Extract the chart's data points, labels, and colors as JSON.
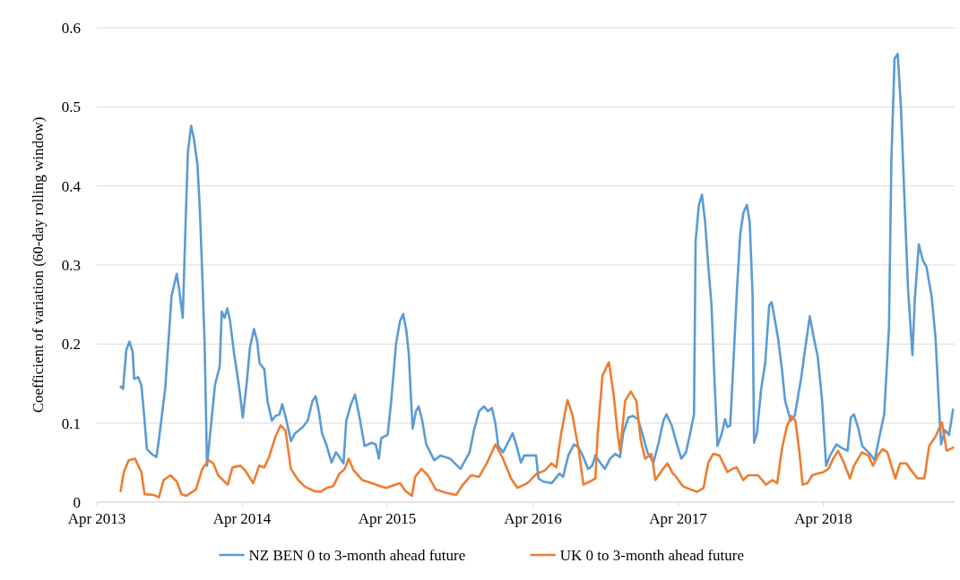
{
  "chart_data": {
    "type": "line",
    "ylabel": "Coefficient of variation (60-day rolling window)",
    "xlim": [
      "2013-04-01",
      "2019-02-25"
    ],
    "xticks": [
      {
        "value": "2013-04-01",
        "label": "Apr 2013"
      },
      {
        "value": "2014-04-01",
        "label": "Apr 2014"
      },
      {
        "value": "2015-04-01",
        "label": "Apr 2015"
      },
      {
        "value": "2016-04-01",
        "label": "Apr 2016"
      },
      {
        "value": "2017-04-01",
        "label": "Apr 2017"
      },
      {
        "value": "2018-04-01",
        "label": "Apr 2018"
      }
    ],
    "ylim": [
      0,
      0.6
    ],
    "yticks": [
      0,
      0.1,
      0.2,
      0.3,
      0.4,
      0.5,
      0.6
    ],
    "grid": "y",
    "legend": "bottom",
    "line_style": "solid",
    "marker": "none",
    "series": [
      {
        "name": "NZ BEN 0 to 3-month ahead future",
        "color": "#5b9bd5",
        "x": [
          "2013-05-31",
          "2013-06-06",
          "2013-06-14",
          "2013-06-22",
          "2013-06-30",
          "2013-07-04",
          "2013-07-14",
          "2013-07-22",
          "2013-07-28",
          "2013-08-05",
          "2013-08-19",
          "2013-08-29",
          "2013-09-04",
          "2013-09-20",
          "2013-10-06",
          "2013-10-19",
          "2013-10-25",
          "2013-11-03",
          "2013-11-10",
          "2013-11-16",
          "2013-11-24",
          "2013-12-01",
          "2013-12-10",
          "2013-12-16",
          "2013-12-22",
          "2013-12-28",
          "2014-01-03",
          "2014-01-11",
          "2014-01-23",
          "2014-02-04",
          "2014-02-09",
          "2014-02-16",
          "2014-02-23",
          "2014-03-02",
          "2014-03-12",
          "2014-03-24",
          "2014-04-03",
          "2014-04-13",
          "2014-04-21",
          "2014-05-01",
          "2014-05-09",
          "2014-05-15",
          "2014-05-27",
          "2014-06-04",
          "2014-06-15",
          "2014-06-24",
          "2014-07-04",
          "2014-07-11",
          "2014-07-20",
          "2014-08-02",
          "2014-08-12",
          "2014-09-01",
          "2014-09-13",
          "2014-09-25",
          "2014-10-03",
          "2014-10-11",
          "2014-10-19",
          "2014-10-31",
          "2014-11-12",
          "2014-11-23",
          "2014-12-02",
          "2014-12-12",
          "2014-12-19",
          "2014-12-31",
          "2015-01-10",
          "2015-01-20",
          "2015-02-03",
          "2015-02-21",
          "2015-03-03",
          "2015-03-11",
          "2015-03-17",
          "2015-04-02",
          "2015-04-11",
          "2015-04-23",
          "2015-05-03",
          "2015-05-11",
          "2015-05-19",
          "2015-05-25",
          "2015-05-31",
          "2015-06-04",
          "2015-06-12",
          "2015-06-19",
          "2015-06-28",
          "2015-07-08",
          "2015-07-28",
          "2015-08-13",
          "2015-09-06",
          "2015-10-02",
          "2015-10-25",
          "2015-11-05",
          "2015-11-18",
          "2015-11-30",
          "2015-12-10",
          "2015-12-20",
          "2015-12-29",
          "2016-01-05",
          "2016-01-17",
          "2016-01-29",
          "2016-02-10",
          "2016-02-18",
          "2016-03-02",
          "2016-03-10",
          "2016-03-26",
          "2016-04-09",
          "2016-04-15",
          "2016-04-27",
          "2016-05-18",
          "2016-06-07",
          "2016-06-16",
          "2016-06-29",
          "2016-07-13",
          "2016-07-25",
          "2016-08-06",
          "2016-08-18",
          "2016-08-28",
          "2016-09-05",
          "2016-09-17",
          "2016-09-29",
          "2016-10-12",
          "2016-10-25",
          "2016-11-06",
          "2016-11-14",
          "2016-11-27",
          "2016-12-08",
          "2016-12-21",
          "2017-01-01",
          "2017-01-14",
          "2017-01-29",
          "2017-02-11",
          "2017-02-23",
          "2017-03-03",
          "2017-03-16",
          "2017-03-28",
          "2017-04-09",
          "2017-04-21",
          "2017-05-03",
          "2017-05-11",
          "2017-05-15",
          "2017-05-23",
          "2017-05-31",
          "2017-06-08",
          "2017-06-16",
          "2017-06-24",
          "2017-07-02",
          "2017-07-09",
          "2017-07-20",
          "2017-07-28",
          "2017-08-03",
          "2017-08-10",
          "2017-08-18",
          "2017-08-27",
          "2017-09-04",
          "2017-09-12",
          "2017-09-21",
          "2017-09-28",
          "2017-10-05",
          "2017-10-09",
          "2017-10-16",
          "2017-10-27",
          "2017-11-06",
          "2017-11-16",
          "2017-11-22",
          "2017-11-28",
          "2017-12-08",
          "2017-12-18",
          "2017-12-26",
          "2018-01-09",
          "2018-01-19",
          "2018-02-04",
          "2018-02-16",
          "2018-02-26",
          "2018-03-08",
          "2018-03-18",
          "2018-03-29",
          "2018-04-08",
          "2018-04-18",
          "2018-05-04",
          "2018-05-16",
          "2018-06-01",
          "2018-06-09",
          "2018-06-17",
          "2018-06-27",
          "2018-07-08",
          "2018-07-27",
          "2018-08-08",
          "2018-08-20",
          "2018-09-01",
          "2018-09-13",
          "2018-09-19",
          "2018-09-27",
          "2018-10-05",
          "2018-10-13",
          "2018-10-23",
          "2018-10-31",
          "2018-11-11",
          "2018-11-17",
          "2018-11-27",
          "2018-12-07",
          "2018-12-16",
          "2018-12-29",
          "2019-01-08",
          "2019-01-16",
          "2019-01-22",
          "2019-02-01",
          "2019-02-11",
          "2019-02-21"
        ],
        "values": [
          0.146,
          0.143,
          0.192,
          0.203,
          0.19,
          0.156,
          0.158,
          0.148,
          0.115,
          0.067,
          0.06,
          0.057,
          0.079,
          0.144,
          0.261,
          0.289,
          0.269,
          0.233,
          0.35,
          0.443,
          0.476,
          0.46,
          0.427,
          0.37,
          0.289,
          0.2,
          0.046,
          0.087,
          0.148,
          0.172,
          0.241,
          0.233,
          0.245,
          0.229,
          0.188,
          0.148,
          0.107,
          0.152,
          0.196,
          0.219,
          0.204,
          0.176,
          0.168,
          0.128,
          0.103,
          0.109,
          0.111,
          0.124,
          0.107,
          0.077,
          0.087,
          0.095,
          0.103,
          0.128,
          0.134,
          0.115,
          0.087,
          0.071,
          0.05,
          0.063,
          0.057,
          0.049,
          0.103,
          0.124,
          0.136,
          0.111,
          0.071,
          0.075,
          0.073,
          0.055,
          0.081,
          0.085,
          0.128,
          0.2,
          0.229,
          0.238,
          0.217,
          0.188,
          0.128,
          0.093,
          0.115,
          0.121,
          0.103,
          0.073,
          0.053,
          0.059,
          0.055,
          0.042,
          0.063,
          0.091,
          0.115,
          0.121,
          0.115,
          0.119,
          0.099,
          0.071,
          0.063,
          0.075,
          0.087,
          0.075,
          0.05,
          0.059,
          0.059,
          0.059,
          0.03,
          0.026,
          0.024,
          0.036,
          0.032,
          0.059,
          0.073,
          0.069,
          0.057,
          0.042,
          0.046,
          0.059,
          0.05,
          0.042,
          0.055,
          0.061,
          0.057,
          0.087,
          0.107,
          0.109,
          0.105,
          0.087,
          0.063,
          0.05,
          0.075,
          0.103,
          0.111,
          0.097,
          0.075,
          0.055,
          0.063,
          0.091,
          0.111,
          0.33,
          0.375,
          0.389,
          0.354,
          0.298,
          0.249,
          0.148,
          0.071,
          0.087,
          0.105,
          0.095,
          0.097,
          0.176,
          0.269,
          0.338,
          0.366,
          0.376,
          0.354,
          0.265,
          0.075,
          0.087,
          0.144,
          0.176,
          0.249,
          0.253,
          0.237,
          0.208,
          0.168,
          0.128,
          0.103,
          0.109,
          0.156,
          0.2,
          0.235,
          0.208,
          0.184,
          0.128,
          0.046,
          0.059,
          0.073,
          0.069,
          0.065,
          0.107,
          0.111,
          0.095,
          0.071,
          0.061,
          0.053,
          0.083,
          0.111,
          0.221,
          0.431,
          0.561,
          0.567,
          0.5,
          0.37,
          0.269,
          0.186,
          0.257,
          0.326,
          0.306,
          0.298,
          0.261,
          0.208,
          0.128,
          0.073,
          0.091,
          0.085,
          0.117
        ]
      },
      {
        "name": "UK 0 to 3-month ahead future",
        "color": "#ed7d31",
        "x": [
          "2013-05-31",
          "2013-06-08",
          "2013-06-20",
          "2013-07-06",
          "2013-07-22",
          "2013-07-30",
          "2013-08-23",
          "2013-09-04",
          "2013-09-16",
          "2013-10-03",
          "2013-10-19",
          "2013-10-31",
          "2013-11-12",
          "2013-12-06",
          "2013-12-22",
          "2014-01-07",
          "2014-01-19",
          "2014-01-31",
          "2014-02-24",
          "2014-03-08",
          "2014-03-28",
          "2014-04-09",
          "2014-04-29",
          "2014-05-14",
          "2014-05-27",
          "2014-06-08",
          "2014-06-24",
          "2014-07-07",
          "2014-07-19",
          "2014-08-02",
          "2014-08-20",
          "2014-09-05",
          "2014-09-29",
          "2014-10-15",
          "2014-10-31",
          "2014-11-16",
          "2014-12-02",
          "2014-12-15",
          "2014-12-25",
          "2015-01-07",
          "2015-01-28",
          "2015-02-21",
          "2015-03-21",
          "2015-03-30",
          "2015-05-03",
          "2015-05-17",
          "2015-06-02",
          "2015-06-10",
          "2015-06-26",
          "2015-07-12",
          "2015-08-01",
          "2015-08-26",
          "2015-09-21",
          "2015-10-08",
          "2015-10-29",
          "2015-11-18",
          "2015-12-08",
          "2015-12-29",
          "2016-01-17",
          "2016-02-06",
          "2016-02-22",
          "2016-03-18",
          "2016-04-11",
          "2016-05-01",
          "2016-05-18",
          "2016-05-30",
          "2016-06-11",
          "2016-06-27",
          "2016-07-09",
          "2016-07-25",
          "2016-08-06",
          "2016-08-22",
          "2016-09-05",
          "2016-09-11",
          "2016-09-23",
          "2016-10-09",
          "2016-10-21",
          "2016-10-31",
          "2016-11-06",
          "2016-11-19",
          "2016-12-03",
          "2016-12-17",
          "2016-12-28",
          "2017-01-08",
          "2017-01-24",
          "2017-02-03",
          "2017-02-19",
          "2017-03-05",
          "2017-03-19",
          "2017-03-24",
          "2017-04-13",
          "2017-05-03",
          "2017-05-19",
          "2017-06-04",
          "2017-06-16",
          "2017-06-28",
          "2017-07-14",
          "2017-08-03",
          "2017-08-15",
          "2017-08-26",
          "2017-09-12",
          "2017-09-24",
          "2017-10-19",
          "2017-11-08",
          "2017-11-24",
          "2017-12-06",
          "2017-12-18",
          "2017-12-30",
          "2018-01-11",
          "2018-01-21",
          "2018-01-31",
          "2018-02-08",
          "2018-02-20",
          "2018-03-04",
          "2018-03-16",
          "2018-04-01",
          "2018-04-14",
          "2018-04-26",
          "2018-05-08",
          "2018-05-20",
          "2018-06-07",
          "2018-06-17",
          "2018-07-07",
          "2018-07-23",
          "2018-08-04",
          "2018-08-16",
          "2018-08-28",
          "2018-09-09",
          "2018-09-29",
          "2018-10-11",
          "2018-10-27",
          "2018-11-08",
          "2018-11-24",
          "2018-12-11",
          "2018-12-23",
          "2019-01-08",
          "2019-01-24",
          "2019-02-05",
          "2019-02-21"
        ],
        "values": [
          0.014,
          0.038,
          0.053,
          0.055,
          0.038,
          0.01,
          0.009,
          0.006,
          0.028,
          0.034,
          0.026,
          0.01,
          0.008,
          0.016,
          0.042,
          0.053,
          0.049,
          0.034,
          0.022,
          0.044,
          0.046,
          0.04,
          0.024,
          0.046,
          0.044,
          0.057,
          0.083,
          0.097,
          0.091,
          0.042,
          0.028,
          0.02,
          0.014,
          0.013,
          0.018,
          0.02,
          0.036,
          0.042,
          0.055,
          0.04,
          0.028,
          0.024,
          0.019,
          0.018,
          0.024,
          0.014,
          0.008,
          0.032,
          0.042,
          0.034,
          0.016,
          0.012,
          0.009,
          0.022,
          0.034,
          0.032,
          0.05,
          0.073,
          0.055,
          0.03,
          0.018,
          0.024,
          0.036,
          0.04,
          0.049,
          0.044,
          0.087,
          0.129,
          0.111,
          0.067,
          0.022,
          0.026,
          0.03,
          0.087,
          0.16,
          0.177,
          0.136,
          0.087,
          0.065,
          0.128,
          0.14,
          0.128,
          0.079,
          0.055,
          0.061,
          0.028,
          0.04,
          0.049,
          0.036,
          0.034,
          0.02,
          0.016,
          0.013,
          0.018,
          0.05,
          0.061,
          0.059,
          0.038,
          0.042,
          0.044,
          0.028,
          0.034,
          0.034,
          0.022,
          0.028,
          0.024,
          0.067,
          0.095,
          0.109,
          0.103,
          0.063,
          0.022,
          0.024,
          0.034,
          0.036,
          0.038,
          0.042,
          0.055,
          0.065,
          0.053,
          0.03,
          0.046,
          0.063,
          0.059,
          0.046,
          0.059,
          0.067,
          0.063,
          0.03,
          0.049,
          0.049,
          0.04,
          0.03,
          0.03,
          0.071,
          0.083,
          0.101,
          0.065,
          0.069
        ]
      }
    ]
  }
}
